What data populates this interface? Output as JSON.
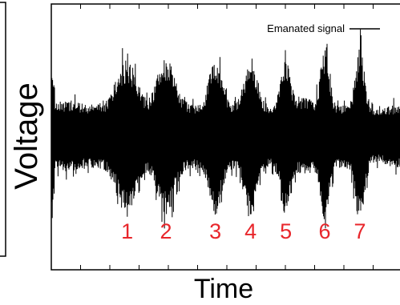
{
  "chart_data": {
    "type": "line",
    "title": "",
    "xlabel": "Time",
    "ylabel": "Voltage",
    "grid": false,
    "legend_position": "top-right",
    "series": [
      {
        "name": "Emanated signal",
        "color": "#000000"
      }
    ],
    "annotations": [
      {
        "label": "1",
        "x": 0.215,
        "color": "#e8262b"
      },
      {
        "label": "2",
        "x": 0.325,
        "color": "#e8262b"
      },
      {
        "label": "3",
        "x": 0.465,
        "color": "#e8262b"
      },
      {
        "label": "4",
        "x": 0.565,
        "color": "#e8262b"
      },
      {
        "label": "5",
        "x": 0.665,
        "color": "#e8262b"
      },
      {
        "label": "6",
        "x": 0.775,
        "color": "#e8262b"
      },
      {
        "label": "7",
        "x": 0.875,
        "color": "#e8262b"
      }
    ]
  }
}
